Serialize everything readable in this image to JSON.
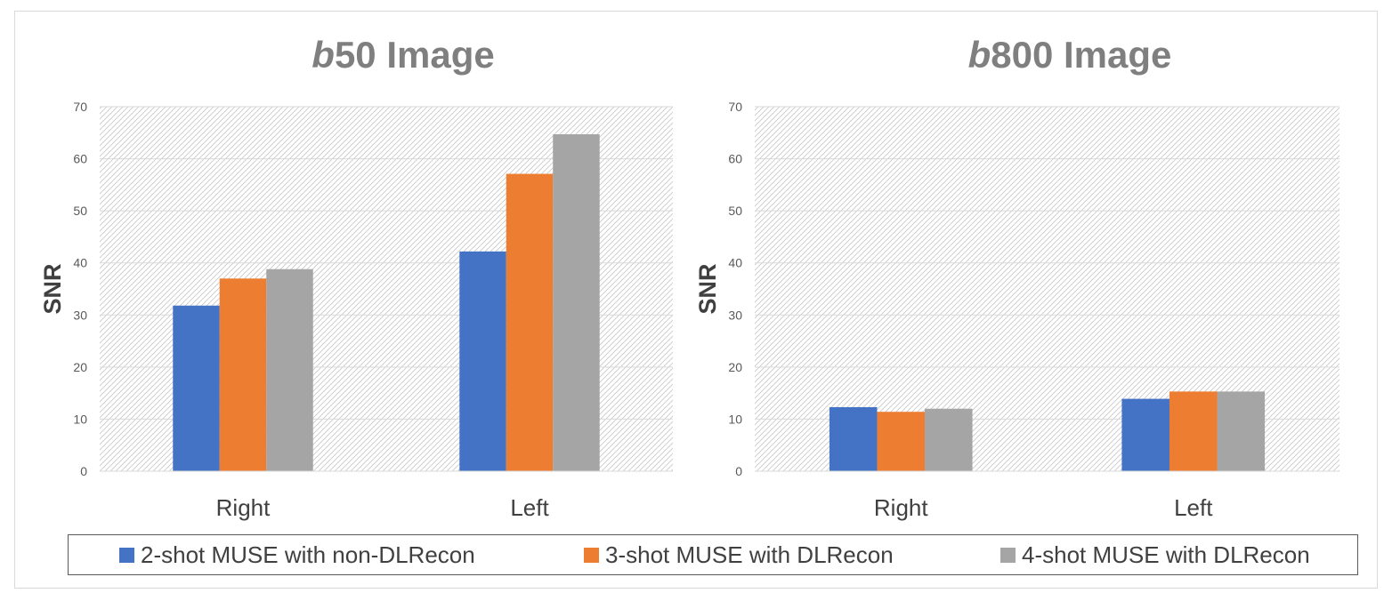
{
  "colors": {
    "series_1": "#4472c4",
    "series_2": "#ed7d31",
    "series_3": "#a5a5a5",
    "grid": "#d9d9d9",
    "hatch": "#c8c8c8",
    "title": "#7f7f7f",
    "axis_text": "#595959"
  },
  "legend": {
    "placement": "bottom",
    "items": [
      {
        "label": "2-shot MUSE with non-DLRecon",
        "color": "#4472c4"
      },
      {
        "label": "3-shot MUSE with DLRecon",
        "color": "#ed7d31"
      },
      {
        "label": "4-shot MUSE with DLRecon",
        "color": "#a5a5a5"
      }
    ]
  },
  "chart_data": [
    {
      "type": "bar",
      "title_prefix": "b",
      "title_rest": "50 Image",
      "ylabel": "SNR",
      "xlabel": "",
      "ylim": [
        0,
        70
      ],
      "yticks": [
        "0",
        "10",
        "20",
        "30",
        "40",
        "50",
        "60",
        "70"
      ],
      "grid": true,
      "categories": [
        "Right",
        "Left"
      ],
      "series": [
        {
          "name": "2-shot MUSE with non-DLRecon",
          "values": [
            31.8,
            42.2
          ]
        },
        {
          "name": "3-shot MUSE with DLRecon",
          "values": [
            37.0,
            57.1
          ]
        },
        {
          "name": "4-shot MUSE with DLRecon",
          "values": [
            38.8,
            64.7
          ]
        }
      ]
    },
    {
      "type": "bar",
      "title_prefix": "b",
      "title_rest": "800 Image",
      "ylabel": "SNR",
      "xlabel": "",
      "ylim": [
        0,
        70
      ],
      "yticks": [
        "0",
        "10",
        "20",
        "30",
        "40",
        "50",
        "60",
        "70"
      ],
      "grid": true,
      "categories": [
        "Right",
        "Left"
      ],
      "series": [
        {
          "name": "2-shot MUSE with non-DLRecon",
          "values": [
            12.3,
            13.9
          ]
        },
        {
          "name": "3-shot MUSE with DLRecon",
          "values": [
            11.4,
            15.3
          ]
        },
        {
          "name": "4-shot MUSE with DLRecon",
          "values": [
            12.0,
            15.3
          ]
        }
      ]
    }
  ]
}
